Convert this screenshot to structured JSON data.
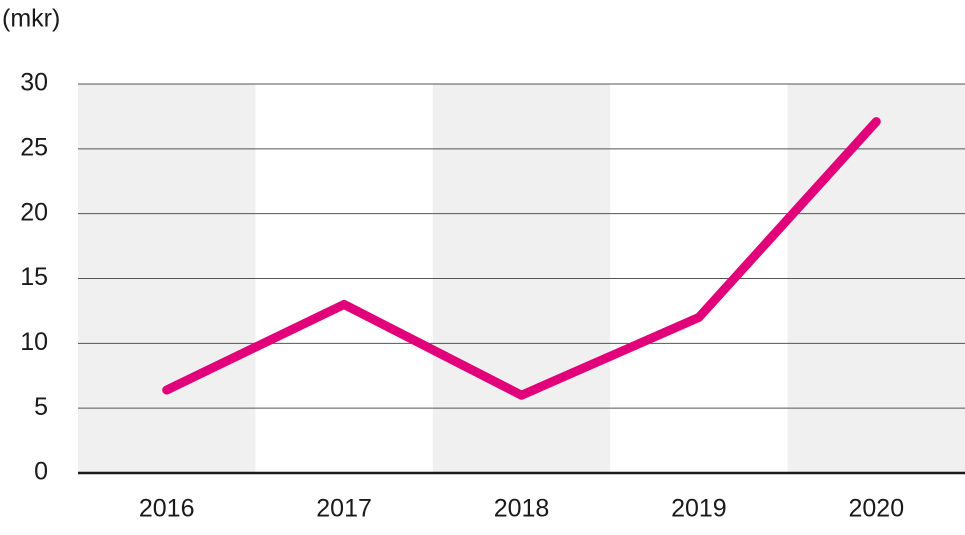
{
  "chart_data": {
    "type": "line",
    "y_label": "(mkr)",
    "categories": [
      "2016",
      "2017",
      "2018",
      "2019",
      "2020"
    ],
    "values": [
      6.4,
      13,
      6,
      12,
      27.1
    ],
    "color": "#e2007a",
    "ylim": [
      0,
      30
    ],
    "yticks": [
      0,
      5,
      10,
      15,
      20,
      25,
      30
    ],
    "grid": true
  }
}
